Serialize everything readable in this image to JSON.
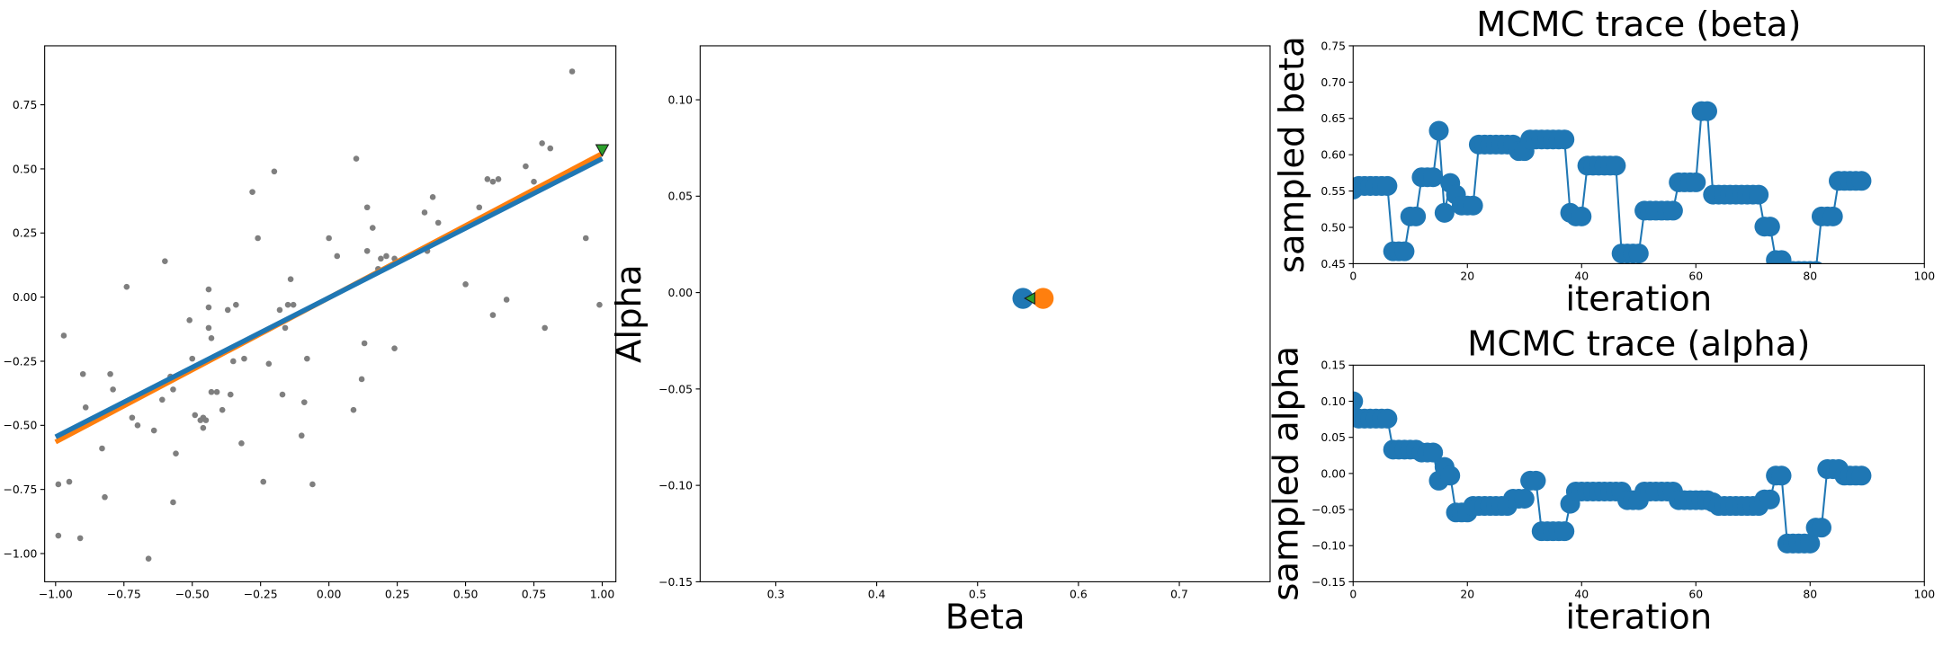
{
  "chart_data": [
    {
      "type": "scatter",
      "xlim": [
        -1.04,
        1.05
      ],
      "ylim": [
        -1.11,
        0.98
      ],
      "xticks": [
        {
          "value": -1,
          "label": "−1.00"
        },
        {
          "value": -0.75,
          "label": "−0.75"
        },
        {
          "value": -0.5,
          "label": "−0.50"
        },
        {
          "value": -0.25,
          "label": "−0.25"
        },
        {
          "value": 0,
          "label": "0.00"
        },
        {
          "value": 0.25,
          "label": "0.25"
        },
        {
          "value": 0.5,
          "label": "0.50"
        },
        {
          "value": 0.75,
          "label": "0.75"
        },
        {
          "value": 1,
          "label": "1.00"
        }
      ],
      "yticks": [
        {
          "value": -1,
          "label": "−1.00"
        },
        {
          "value": -0.75,
          "label": "−0.75"
        },
        {
          "value": -0.5,
          "label": "−0.50"
        },
        {
          "value": -0.25,
          "label": "−0.25"
        },
        {
          "value": 0,
          "label": "0.00"
        },
        {
          "value": 0.25,
          "label": "0.25"
        },
        {
          "value": 0.5,
          "label": "0.50"
        },
        {
          "value": 0.75,
          "label": "0.75"
        }
      ],
      "series": [
        {
          "color": "#7f7f7f",
          "mode": "points",
          "x": [
            -0.99,
            -0.97,
            -0.99,
            -0.95,
            -0.91,
            -0.9,
            -0.89,
            -0.83,
            -0.82,
            -0.8,
            -0.79,
            -0.74,
            -0.72,
            -0.7,
            -0.66,
            -0.64,
            -0.61,
            -0.6,
            -0.58,
            -0.57,
            -0.57,
            -0.56,
            -0.51,
            -0.5,
            -0.49,
            -0.47,
            -0.46,
            -0.46,
            -0.45,
            -0.44,
            -0.44,
            -0.44,
            -0.43,
            -0.43,
            -0.41,
            -0.39,
            -0.37,
            -0.36,
            -0.35,
            -0.34,
            -0.32,
            -0.31,
            -0.28,
            -0.26,
            -0.24,
            -0.22,
            -0.2,
            -0.18,
            -0.17,
            -0.16,
            -0.15,
            -0.14,
            -0.13,
            -0.1,
            -0.09,
            -0.08,
            -0.06,
            0.0,
            0.03,
            0.09,
            0.1,
            0.12,
            0.13,
            0.14,
            0.14,
            0.16,
            0.18,
            0.19,
            0.21,
            0.24,
            0.24,
            0.35,
            0.36,
            0.38,
            0.4,
            0.5,
            0.55,
            0.58,
            0.6,
            0.6,
            0.62,
            0.65,
            0.72,
            0.75,
            0.78,
            0.79,
            0.81,
            0.89,
            0.94,
            0.99
          ],
          "y": [
            -0.73,
            -0.15,
            -0.93,
            -0.72,
            -0.94,
            -0.3,
            -0.43,
            -0.59,
            -0.78,
            -0.3,
            -0.36,
            0.04,
            -0.47,
            -0.5,
            -1.02,
            -0.52,
            -0.4,
            0.14,
            -0.31,
            -0.36,
            -0.8,
            -0.61,
            -0.09,
            -0.24,
            -0.46,
            -0.48,
            -0.47,
            -0.51,
            -0.48,
            -0.04,
            -0.12,
            0.03,
            -0.16,
            -0.37,
            -0.37,
            -0.44,
            -0.05,
            -0.38,
            -0.25,
            -0.03,
            -0.57,
            -0.24,
            0.41,
            0.23,
            -0.72,
            -0.26,
            0.49,
            -0.05,
            -0.38,
            -0.12,
            -0.03,
            0.07,
            -0.03,
            -0.54,
            -0.41,
            -0.24,
            -0.73,
            0.23,
            0.16,
            -0.44,
            0.54,
            -0.32,
            -0.18,
            0.35,
            0.18,
            0.27,
            0.11,
            0.15,
            0.16,
            -0.2,
            0.15,
            0.33,
            0.18,
            0.39,
            0.29,
            0.05,
            0.35,
            0.46,
            -0.07,
            0.45,
            0.46,
            -0.01,
            0.51,
            0.45,
            0.6,
            -0.12,
            0.58,
            0.88,
            0.23,
            -0.03
          ]
        },
        {
          "color": "#ff7f0e",
          "mode": "line",
          "x": [
            -1,
            1
          ],
          "y": [
            -0.565,
            0.56
          ]
        },
        {
          "color": "#1f77b4",
          "mode": "line",
          "x": [
            -1,
            1
          ],
          "y": [
            -0.545,
            0.54
          ]
        },
        {
          "color": "#2ca02c",
          "mode": "triangle-down",
          "x": [
            1
          ],
          "y": [
            0.57
          ]
        }
      ]
    },
    {
      "type": "scatter",
      "xlabel": "Beta",
      "ylabel": "Alpha",
      "xlim": [
        0.225,
        0.79
      ],
      "ylim": [
        -0.15,
        0.128
      ],
      "xticks": [
        0.3,
        0.4,
        0.5,
        0.6,
        0.7
      ],
      "yticks": [
        {
          "value": -0.15,
          "label": "−0.15"
        },
        {
          "value": -0.1,
          "label": "−0.10"
        },
        {
          "value": -0.05,
          "label": "−0.05"
        },
        {
          "value": 0,
          "label": "0.00"
        },
        {
          "value": 0.05,
          "label": "0.05"
        },
        {
          "value": 0.1,
          "label": "0.10"
        }
      ],
      "series": [
        {
          "color": "#1f77b4",
          "mode": "big-points",
          "x": [
            0.545
          ],
          "y": [
            -0.003
          ]
        },
        {
          "color": "#ff7f0e",
          "mode": "big-points",
          "x": [
            0.565
          ],
          "y": [
            -0.003
          ]
        },
        {
          "color": "#2ca02c",
          "mode": "triangle-left",
          "x": [
            0.553
          ],
          "y": [
            -0.003
          ]
        }
      ]
    },
    {
      "type": "line",
      "title": "MCMC trace (beta)",
      "xlabel": "iteration",
      "ylabel": "sampled beta",
      "xlim": [
        0,
        100
      ],
      "ylim": [
        0.45,
        0.75
      ],
      "xticks": [
        0,
        20,
        40,
        60,
        80,
        100
      ],
      "yticks": [
        0.45,
        {
          "value": 0.5,
          "label": "0.50"
        },
        0.55,
        {
          "value": 0.6,
          "label": "0.60"
        },
        0.65,
        {
          "value": 0.7,
          "label": "0.70"
        },
        0.75
      ],
      "x": [
        0,
        1,
        2,
        3,
        4,
        5,
        6,
        7,
        8,
        9,
        10,
        11,
        12,
        13,
        14,
        15,
        16,
        17,
        18,
        19,
        20,
        21,
        22,
        23,
        24,
        25,
        26,
        27,
        28,
        29,
        30,
        31,
        32,
        33,
        34,
        35,
        36,
        37,
        38,
        39,
        40,
        41,
        42,
        43,
        44,
        45,
        46,
        47,
        48,
        49,
        50,
        51,
        52,
        53,
        54,
        55,
        56,
        57,
        58,
        59,
        60,
        61,
        62,
        63,
        64,
        65,
        66,
        67,
        68,
        69,
        70,
        71,
        72,
        73,
        74,
        75,
        76,
        77,
        78,
        79,
        80,
        81,
        82,
        83,
        84,
        85,
        86,
        87,
        88,
        89
      ],
      "series": [
        {
          "color": "#1f77b4",
          "values": [
            0.552,
            0.557,
            0.557,
            0.557,
            0.557,
            0.557,
            0.557,
            0.467,
            0.467,
            0.467,
            0.515,
            0.515,
            0.569,
            0.569,
            0.569,
            0.633,
            0.52,
            0.561,
            0.545,
            0.53,
            0.53,
            0.53,
            0.614,
            0.614,
            0.614,
            0.614,
            0.614,
            0.614,
            0.614,
            0.605,
            0.605,
            0.621,
            0.621,
            0.621,
            0.621,
            0.621,
            0.621,
            0.621,
            0.52,
            0.515,
            0.515,
            0.585,
            0.585,
            0.585,
            0.585,
            0.585,
            0.585,
            0.464,
            0.464,
            0.464,
            0.464,
            0.523,
            0.523,
            0.523,
            0.523,
            0.523,
            0.523,
            0.562,
            0.562,
            0.562,
            0.562,
            0.66,
            0.66,
            0.545,
            0.545,
            0.545,
            0.545,
            0.545,
            0.545,
            0.545,
            0.545,
            0.545,
            0.501,
            0.501,
            0.455,
            0.455,
            0.44,
            0.44,
            0.44,
            0.44,
            0.44,
            0.44,
            0.515,
            0.515,
            0.515,
            0.564,
            0.564,
            0.564,
            0.564,
            0.564
          ]
        }
      ]
    },
    {
      "type": "line",
      "title": "MCMC trace (alpha)",
      "xlabel": "iteration",
      "ylabel": "sampled alpha",
      "xlim": [
        0,
        100
      ],
      "ylim": [
        -0.15,
        0.15
      ],
      "xticks": [
        0,
        20,
        40,
        60,
        80,
        100
      ],
      "yticks": [
        {
          "value": -0.15,
          "label": "−0.15"
        },
        {
          "value": -0.1,
          "label": "−0.10"
        },
        {
          "value": -0.05,
          "label": "−0.05"
        },
        {
          "value": 0,
          "label": "0.00"
        },
        0.05,
        {
          "value": 0.1,
          "label": "0.10"
        },
        0.15
      ],
      "x": [
        0,
        1,
        2,
        3,
        4,
        5,
        6,
        7,
        8,
        9,
        10,
        11,
        12,
        13,
        14,
        15,
        16,
        17,
        18,
        19,
        20,
        21,
        22,
        23,
        24,
        25,
        26,
        27,
        28,
        29,
        30,
        31,
        32,
        33,
        34,
        35,
        36,
        37,
        38,
        39,
        40,
        41,
        42,
        43,
        44,
        45,
        46,
        47,
        48,
        49,
        50,
        51,
        52,
        53,
        54,
        55,
        56,
        57,
        58,
        59,
        60,
        61,
        62,
        63,
        64,
        65,
        66,
        67,
        68,
        69,
        70,
        71,
        72,
        73,
        74,
        75,
        76,
        77,
        78,
        79,
        80,
        81,
        82,
        83,
        84,
        85,
        86,
        87,
        88,
        89
      ],
      "series": [
        {
          "color": "#1f77b4",
          "values": [
            0.1,
            0.076,
            0.076,
            0.076,
            0.076,
            0.076,
            0.076,
            0.033,
            0.033,
            0.033,
            0.033,
            0.033,
            0.029,
            0.029,
            0.029,
            -0.01,
            0.009,
            -0.003,
            -0.054,
            -0.054,
            -0.054,
            -0.045,
            -0.045,
            -0.045,
            -0.045,
            -0.045,
            -0.045,
            -0.045,
            -0.035,
            -0.035,
            -0.035,
            -0.01,
            -0.01,
            -0.08,
            -0.08,
            -0.08,
            -0.08,
            -0.08,
            -0.042,
            -0.025,
            -0.025,
            -0.025,
            -0.025,
            -0.025,
            -0.025,
            -0.025,
            -0.025,
            -0.025,
            -0.037,
            -0.037,
            -0.037,
            -0.025,
            -0.025,
            -0.025,
            -0.025,
            -0.025,
            -0.025,
            -0.037,
            -0.037,
            -0.037,
            -0.037,
            -0.037,
            -0.037,
            -0.04,
            -0.045,
            -0.045,
            -0.045,
            -0.045,
            -0.045,
            -0.045,
            -0.045,
            -0.045,
            -0.036,
            -0.036,
            -0.003,
            -0.003,
            -0.097,
            -0.097,
            -0.097,
            -0.097,
            -0.097,
            -0.075,
            -0.075,
            0.006,
            0.006,
            0.006,
            -0.003,
            -0.003,
            -0.003,
            -0.003
          ]
        }
      ]
    }
  ]
}
